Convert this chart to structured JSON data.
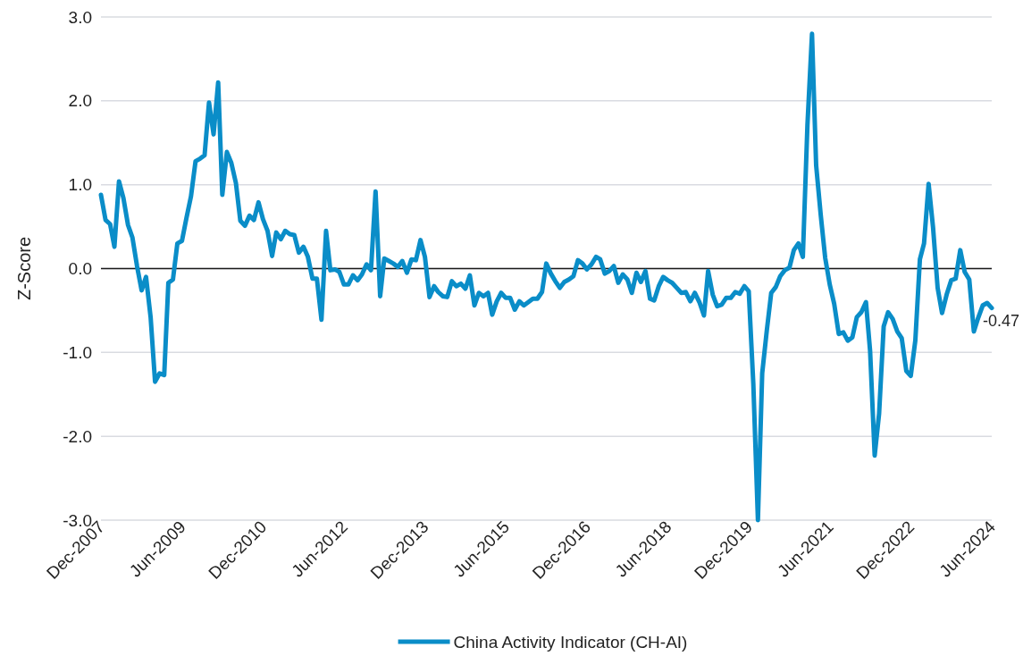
{
  "chart_data": {
    "type": "line",
    "ylabel": "Z-Score",
    "x": [
      "2007-12",
      "2008-01",
      "2008-02",
      "2008-03",
      "2008-04",
      "2008-05",
      "2008-06",
      "2008-07",
      "2008-08",
      "2008-09",
      "2008-10",
      "2008-11",
      "2008-12",
      "2009-01",
      "2009-02",
      "2009-03",
      "2009-04",
      "2009-05",
      "2009-06",
      "2009-07",
      "2009-08",
      "2009-09",
      "2009-10",
      "2009-11",
      "2009-12",
      "2010-01",
      "2010-02",
      "2010-03",
      "2010-04",
      "2010-05",
      "2010-06",
      "2010-07",
      "2010-08",
      "2010-09",
      "2010-10",
      "2010-11",
      "2010-12",
      "2011-01",
      "2011-02",
      "2011-03",
      "2011-04",
      "2011-05",
      "2011-06",
      "2011-07",
      "2011-08",
      "2011-09",
      "2011-10",
      "2011-11",
      "2011-12",
      "2012-01",
      "2012-02",
      "2012-03",
      "2012-04",
      "2012-05",
      "2012-06",
      "2012-07",
      "2012-08",
      "2012-09",
      "2012-10",
      "2012-11",
      "2012-12",
      "2013-01",
      "2013-02",
      "2013-03",
      "2013-04",
      "2013-05",
      "2013-06",
      "2013-07",
      "2013-08",
      "2013-09",
      "2013-10",
      "2013-11",
      "2013-12",
      "2014-01",
      "2014-02",
      "2014-03",
      "2014-04",
      "2014-05",
      "2014-06",
      "2014-07",
      "2014-08",
      "2014-09",
      "2014-10",
      "2014-11",
      "2014-12",
      "2015-01",
      "2015-02",
      "2015-03",
      "2015-04",
      "2015-05",
      "2015-06",
      "2015-07",
      "2015-08",
      "2015-09",
      "2015-10",
      "2015-11",
      "2015-12",
      "2016-01",
      "2016-02",
      "2016-03",
      "2016-04",
      "2016-05",
      "2016-06",
      "2016-07",
      "2016-08",
      "2016-09",
      "2016-10",
      "2016-11",
      "2016-12",
      "2017-01",
      "2017-02",
      "2017-03",
      "2017-04",
      "2017-05",
      "2017-06",
      "2017-07",
      "2017-08",
      "2017-09",
      "2017-10",
      "2017-11",
      "2017-12",
      "2018-01",
      "2018-02",
      "2018-03",
      "2018-04",
      "2018-05",
      "2018-06",
      "2018-07",
      "2018-08",
      "2018-09",
      "2018-10",
      "2018-11",
      "2018-12",
      "2019-01",
      "2019-02",
      "2019-03",
      "2019-04",
      "2019-05",
      "2019-06",
      "2019-07",
      "2019-08",
      "2019-09",
      "2019-10",
      "2019-11",
      "2019-12",
      "2020-01",
      "2020-02",
      "2020-03",
      "2020-04",
      "2020-05",
      "2020-06",
      "2020-07",
      "2020-08",
      "2020-09",
      "2020-10",
      "2020-11",
      "2020-12",
      "2021-01",
      "2021-02",
      "2021-03",
      "2021-04",
      "2021-05",
      "2021-06",
      "2021-07",
      "2021-08",
      "2021-09",
      "2021-10",
      "2021-11",
      "2021-12",
      "2022-01",
      "2022-02",
      "2022-03",
      "2022-04",
      "2022-05",
      "2022-06",
      "2022-07",
      "2022-08",
      "2022-09",
      "2022-10",
      "2022-11",
      "2022-12",
      "2023-01",
      "2023-02",
      "2023-03",
      "2023-04",
      "2023-05",
      "2023-06",
      "2023-07",
      "2023-08",
      "2023-09",
      "2023-10",
      "2023-11",
      "2023-12",
      "2024-01",
      "2024-02",
      "2024-03",
      "2024-04",
      "2024-05",
      "2024-06"
    ],
    "series": [
      {
        "name": "China Activity Indicator (CH-AI)",
        "color": "#0a8dc8",
        "values": [
          0.88,
          0.58,
          0.53,
          0.26,
          1.04,
          0.84,
          0.52,
          0.37,
          0.03,
          -0.26,
          -0.1,
          -0.58,
          -1.35,
          -1.25,
          -1.27,
          -0.17,
          -0.13,
          0.3,
          0.33,
          0.6,
          0.86,
          1.28,
          1.31,
          1.35,
          1.98,
          1.6,
          2.22,
          0.88,
          1.39,
          1.26,
          1.02,
          0.57,
          0.51,
          0.63,
          0.58,
          0.79,
          0.59,
          0.45,
          0.15,
          0.43,
          0.35,
          0.45,
          0.41,
          0.4,
          0.19,
          0.26,
          0.14,
          -0.12,
          -0.12,
          -0.61,
          0.45,
          -0.02,
          -0.01,
          -0.04,
          -0.19,
          -0.19,
          -0.08,
          -0.14,
          -0.07,
          0.05,
          -0.02,
          0.92,
          -0.33,
          0.12,
          0.09,
          0.06,
          0.02,
          0.09,
          -0.05,
          0.11,
          0.1,
          0.34,
          0.14,
          -0.34,
          -0.21,
          -0.28,
          -0.33,
          -0.34,
          -0.15,
          -0.21,
          -0.18,
          -0.24,
          -0.08,
          -0.44,
          -0.29,
          -0.33,
          -0.29,
          -0.55,
          -0.39,
          -0.29,
          -0.35,
          -0.35,
          -0.49,
          -0.39,
          -0.44,
          -0.4,
          -0.36,
          -0.36,
          -0.28,
          0.06,
          -0.06,
          -0.15,
          -0.23,
          -0.16,
          -0.13,
          -0.09,
          0.1,
          0.06,
          -0.01,
          0.05,
          0.14,
          0.11,
          -0.06,
          -0.03,
          0.03,
          -0.17,
          -0.07,
          -0.13,
          -0.29,
          -0.05,
          -0.16,
          -0.03,
          -0.36,
          -0.38,
          -0.21,
          -0.1,
          -0.14,
          -0.17,
          -0.23,
          -0.29,
          -0.28,
          -0.39,
          -0.29,
          -0.4,
          -0.56,
          -0.03,
          -0.31,
          -0.45,
          -0.43,
          -0.35,
          -0.35,
          -0.28,
          -0.3,
          -0.21,
          -0.27,
          -1.38,
          -3.0,
          -1.25,
          -0.74,
          -0.29,
          -0.22,
          -0.09,
          -0.02,
          0.01,
          0.22,
          0.3,
          0.14,
          1.71,
          2.8,
          1.23,
          0.64,
          0.13,
          -0.19,
          -0.42,
          -0.78,
          -0.76,
          -0.86,
          -0.82,
          -0.58,
          -0.52,
          -0.4,
          -0.98,
          -2.23,
          -1.73,
          -0.69,
          -0.52,
          -0.6,
          -0.75,
          -0.83,
          -1.22,
          -1.28,
          -0.86,
          0.11,
          0.3,
          1.01,
          0.49,
          -0.23,
          -0.53,
          -0.31,
          -0.14,
          -0.12,
          0.22,
          -0.04,
          -0.13,
          -0.75,
          -0.59,
          -0.44,
          -0.41,
          -0.47
        ]
      }
    ],
    "xlim": [
      "2007-12",
      "2024-06"
    ],
    "xticks": [
      {
        "value": "2007-12",
        "label": "Dec-2007"
      },
      {
        "value": "2009-06",
        "label": "Jun-2009"
      },
      {
        "value": "2010-12",
        "label": "Dec-2010"
      },
      {
        "value": "2012-06",
        "label": "Jun-2012"
      },
      {
        "value": "2013-12",
        "label": "Dec-2013"
      },
      {
        "value": "2015-06",
        "label": "Jun-2015"
      },
      {
        "value": "2016-12",
        "label": "Dec-2016"
      },
      {
        "value": "2018-06",
        "label": "Jun-2018"
      },
      {
        "value": "2019-12",
        "label": "Dec-2019"
      },
      {
        "value": "2021-06",
        "label": "Jun-2021"
      },
      {
        "value": "2022-12",
        "label": "Dec-2022"
      },
      {
        "value": "2024-06",
        "label": "Jun-2024"
      }
    ],
    "ylim": [
      -3,
      3
    ],
    "yticks": [
      {
        "value": -3,
        "label": "-3.0"
      },
      {
        "value": -2,
        "label": "-2.0"
      },
      {
        "value": -1,
        "label": "-1.0"
      },
      {
        "value": 0,
        "label": "0.0"
      },
      {
        "value": 1,
        "label": "1.0"
      },
      {
        "value": 2,
        "label": "2.0"
      },
      {
        "value": 3,
        "label": "3.0"
      }
    ],
    "grid": "y",
    "legend": "bottom",
    "ref_lines": [
      {
        "axis": "y",
        "value": 0,
        "color": "#1a1a1a"
      }
    ],
    "annotations": [
      {
        "text": "-0.47",
        "x": "2024-06",
        "y": -0.47
      }
    ]
  }
}
